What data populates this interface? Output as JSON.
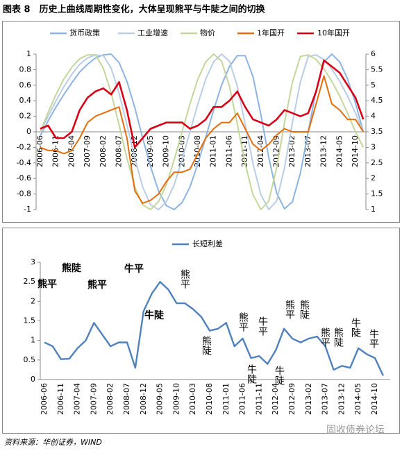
{
  "title": "图表 8　历史上曲线周期性变化，大体呈现熊平与牛陡之间的切换",
  "source": "资料来源：华创证券，WIND",
  "watermark": "固收债券论坛",
  "chart_data": [
    {
      "type": "line",
      "categories": [
        "2006-06",
        null,
        "2006-11",
        null,
        "2007-04",
        null,
        "2007-09",
        null,
        "2008-02",
        null,
        "2008-07",
        null,
        "2008-12",
        null,
        "2009-05",
        null,
        "2009-10",
        null,
        "2010-03",
        null,
        "2010-08",
        null,
        "2011-01",
        null,
        "2011-06",
        null,
        "2011-11",
        null,
        "2012-04",
        null,
        "2012-09",
        null,
        "2013-02",
        null,
        "2013-07",
        null,
        "2013-12",
        null,
        "2014-05",
        null,
        "2014-10",
        null
      ],
      "ylim": [
        -1,
        1
      ],
      "yticks": [
        -1,
        -0.8,
        -0.6,
        -0.4,
        -0.2,
        0,
        0.2,
        0.4,
        0.6,
        0.8,
        1
      ],
      "y2lim": [
        1,
        6
      ],
      "y2ticks": [
        1,
        1.5,
        2,
        2.5,
        3,
        3.5,
        4,
        4.5,
        5,
        5.5,
        6
      ],
      "grid": false,
      "series": [
        {
          "name": "货币政策",
          "color": "#8db3e2",
          "values": [
            -0.05,
            0.14,
            0.32,
            0.48,
            0.63,
            0.77,
            0.87,
            0.95,
            0.99,
            1.0,
            0.89,
            0.65,
            0.31,
            -0.08,
            -0.45,
            -0.76,
            -0.95,
            -1.0,
            -0.91,
            -0.71,
            -0.41,
            -0.07,
            0.28,
            0.6,
            0.84,
            0.98,
            0.98,
            0.71,
            0.22,
            -0.33,
            -0.79,
            -0.99,
            -0.9,
            -0.53,
            0,
            0.53,
            0.9,
            1.0,
            0.9,
            0.68,
            0.37,
            0
          ]
        },
        {
          "name": "工业增速",
          "color": "#b9cde5",
          "values": [
            0,
            0.2,
            0.4,
            0.58,
            0.74,
            0.87,
            0.95,
            0.99,
            0.98,
            0.82,
            0.5,
            0.09,
            -0.34,
            -0.71,
            -0.94,
            -1.0,
            -0.9,
            -0.68,
            -0.36,
            0,
            0.36,
            0.68,
            0.9,
            1.0,
            0.91,
            0.59,
            0.1,
            -0.41,
            -0.81,
            -1.0,
            -0.89,
            -0.46,
            0.12,
            0.64,
            0.97,
            0.99,
            0.93,
            0.81,
            0.65,
            0.46,
            0.24,
            0
          ]
        },
        {
          "name": "物价",
          "color": "#c3d69b",
          "values": [
            0,
            0.25,
            0.48,
            0.68,
            0.83,
            0.94,
            0.99,
            0.99,
            0.82,
            0.5,
            0.09,
            -0.34,
            -0.71,
            -0.94,
            -1.0,
            -0.9,
            -0.68,
            -0.36,
            0,
            0.36,
            0.68,
            0.9,
            1.0,
            0.91,
            0.59,
            0.1,
            -0.41,
            -0.81,
            -1.0,
            -0.89,
            -0.46,
            0.12,
            0.64,
            0.97,
            0.99,
            0.93,
            0.81,
            0.65,
            0.46,
            0.24,
            0,
            -0.2
          ]
        },
        {
          "name": "1年国开",
          "color": "#e46c0a",
          "axis": "y2",
          "values": [
            3.0,
            2.9,
            2.9,
            2.8,
            2.9,
            3.3,
            3.8,
            4.0,
            4.1,
            4.2,
            4.3,
            3.3,
            1.6,
            1.2,
            1.3,
            1.5,
            1.9,
            2.2,
            2.2,
            2.3,
            2.8,
            3.3,
            3.6,
            3.8,
            3.8,
            4.1,
            3.6,
            3.1,
            2.9,
            3.1,
            3.4,
            3.6,
            3.5,
            3.5,
            3.5,
            4.4,
            5.3,
            4.4,
            4.2,
            3.9,
            3.9,
            3.5
          ]
        },
        {
          "name": "10年国开",
          "color": "#d90016",
          "axis": "y2",
          "values": [
            3.6,
            3.7,
            3.3,
            3.3,
            3.5,
            4.2,
            4.6,
            4.8,
            4.9,
            4.7,
            5.1,
            4.2,
            3.0,
            3.3,
            3.6,
            3.7,
            3.8,
            3.8,
            3.8,
            3.6,
            3.7,
            3.9,
            4.3,
            4.3,
            4.5,
            4.8,
            4.3,
            3.9,
            3.8,
            3.7,
            3.9,
            4.2,
            4.1,
            4.0,
            4.1,
            4.8,
            5.8,
            5.6,
            5.4,
            5.0,
            4.6,
            3.9
          ]
        }
      ]
    },
    {
      "type": "line",
      "categories": [
        "2006-06",
        null,
        "2006-11",
        null,
        "2007-04",
        null,
        "2007-09",
        null,
        "2008-02",
        null,
        "2008-07",
        null,
        "2008-12",
        null,
        "2009-05",
        null,
        "2009-10",
        null,
        "2010-03",
        null,
        "2010-08",
        null,
        "2011-01",
        null,
        "2011-06",
        null,
        "2011-11",
        null,
        "2012-04",
        null,
        "2012-09",
        null,
        "2013-02",
        null,
        "2013-07",
        null,
        "2013-12",
        null,
        "2014-05",
        null,
        "2014-10",
        null
      ],
      "ylim": [
        0,
        3
      ],
      "yticks": [
        0,
        0.5,
        1,
        1.5,
        2,
        2.5,
        3
      ],
      "grid": false,
      "series": [
        {
          "name": "长短利差",
          "color": "#4f81bd",
          "values": [
            0.95,
            0.85,
            0.52,
            0.53,
            0.8,
            1.0,
            1.45,
            1.15,
            0.85,
            0.95,
            0.95,
            0.3,
            1.75,
            2.2,
            2.5,
            2.3,
            1.95,
            1.95,
            1.8,
            1.6,
            1.25,
            1.3,
            1.45,
            0.85,
            1.05,
            0.55,
            0.6,
            0.4,
            0.75,
            1.3,
            1.05,
            0.95,
            1.05,
            1.1,
            0.85,
            0.25,
            0.35,
            0.3,
            0.8,
            0.65,
            0.55,
            0.1
          ]
        }
      ],
      "annotations": [
        "熊平",
        "熊陡",
        "熊平",
        "牛平",
        "牛陡",
        "熊平",
        "熊陡",
        "熊平",
        "牛陡",
        "牛平",
        "牛陡",
        "熊平",
        "熊陡",
        "熊平",
        "熊陡",
        "牛陡",
        "牛平"
      ]
    }
  ]
}
